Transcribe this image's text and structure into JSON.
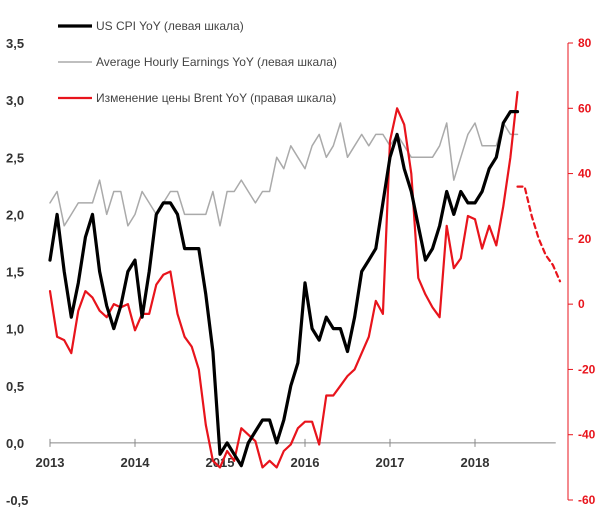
{
  "chart_data": {
    "type": "line",
    "legend_position": "top-left",
    "grid": false,
    "x_tick_labels": [
      "2013",
      "2014",
      "2015",
      "2016",
      "2017",
      "2018"
    ],
    "x_range": [
      2013.0,
      2019.0
    ],
    "y_left": {
      "range": [
        -0.5,
        3.5
      ],
      "tick_labels": [
        "-0,5",
        "0,0",
        "0,5",
        "1,0",
        "1,5",
        "2,0",
        "2,5",
        "3,0",
        "3,5"
      ],
      "tick_values": [
        -0.5,
        0,
        0.5,
        1,
        1.5,
        2,
        2.5,
        3,
        3.5
      ]
    },
    "y_right": {
      "range": [
        -60,
        80
      ],
      "tick_labels": [
        "-60",
        "-40",
        "-20",
        "0",
        "20",
        "40",
        "60",
        "80"
      ],
      "tick_values": [
        -60,
        -40,
        -20,
        0,
        20,
        40,
        60,
        80
      ]
    },
    "colors": {
      "cpi": "#000000",
      "ahe": "#aaaaaa",
      "brent": "#e8141c",
      "right_axis": "#e8141c"
    },
    "series": [
      {
        "name": "US CPI YoY (левая шкала)",
        "axis": "left",
        "x": [
          2013.0,
          2013.083,
          2013.167,
          2013.25,
          2013.333,
          2013.417,
          2013.5,
          2013.583,
          2013.667,
          2013.75,
          2013.833,
          2013.917,
          2014.0,
          2014.083,
          2014.167,
          2014.25,
          2014.333,
          2014.417,
          2014.5,
          2014.583,
          2014.667,
          2014.75,
          2014.833,
          2014.917,
          2015.0,
          2015.083,
          2015.167,
          2015.25,
          2015.333,
          2015.417,
          2015.5,
          2015.583,
          2015.667,
          2015.75,
          2015.833,
          2015.917,
          2016.0,
          2016.083,
          2016.167,
          2016.25,
          2016.333,
          2016.417,
          2016.5,
          2016.583,
          2016.667,
          2016.75,
          2016.833,
          2016.917,
          2017.0,
          2017.083,
          2017.167,
          2017.25,
          2017.333,
          2017.417,
          2017.5,
          2017.583,
          2017.667,
          2017.75,
          2017.833,
          2017.917,
          2018.0,
          2018.083,
          2018.167,
          2018.25,
          2018.333,
          2018.417,
          2018.5
        ],
        "y": [
          1.6,
          2.0,
          1.5,
          1.1,
          1.4,
          1.8,
          2.0,
          1.5,
          1.2,
          1.0,
          1.2,
          1.5,
          1.6,
          1.1,
          1.5,
          2.0,
          2.1,
          2.1,
          2.0,
          1.7,
          1.7,
          1.7,
          1.3,
          0.8,
          -0.1,
          0.0,
          -0.1,
          -0.2,
          0.0,
          0.1,
          0.2,
          0.2,
          0.0,
          0.2,
          0.5,
          0.7,
          1.4,
          1.0,
          0.9,
          1.1,
          1.0,
          1.0,
          0.8,
          1.1,
          1.5,
          1.6,
          1.7,
          2.1,
          2.5,
          2.7,
          2.4,
          2.2,
          1.9,
          1.6,
          1.7,
          1.9,
          2.2,
          2.0,
          2.2,
          2.1,
          2.1,
          2.2,
          2.4,
          2.5,
          2.8,
          2.9,
          2.9
        ]
      },
      {
        "name": "Average Hourly Earnings YoY (левая шкала)",
        "axis": "left",
        "x": [
          2013.0,
          2013.083,
          2013.167,
          2013.25,
          2013.333,
          2013.417,
          2013.5,
          2013.583,
          2013.667,
          2013.75,
          2013.833,
          2013.917,
          2014.0,
          2014.083,
          2014.167,
          2014.25,
          2014.333,
          2014.417,
          2014.5,
          2014.583,
          2014.667,
          2014.75,
          2014.833,
          2014.917,
          2015.0,
          2015.083,
          2015.167,
          2015.25,
          2015.333,
          2015.417,
          2015.5,
          2015.583,
          2015.667,
          2015.75,
          2015.833,
          2015.917,
          2016.0,
          2016.083,
          2016.167,
          2016.25,
          2016.333,
          2016.417,
          2016.5,
          2016.583,
          2016.667,
          2016.75,
          2016.833,
          2016.917,
          2017.0,
          2017.083,
          2017.167,
          2017.25,
          2017.333,
          2017.417,
          2017.5,
          2017.583,
          2017.667,
          2017.75,
          2017.833,
          2017.917,
          2018.0,
          2018.083,
          2018.167,
          2018.25,
          2018.333,
          2018.417,
          2018.5
        ],
        "y": [
          2.1,
          2.2,
          1.9,
          2.0,
          2.1,
          2.1,
          2.1,
          2.3,
          2.0,
          2.2,
          2.2,
          1.9,
          2.0,
          2.2,
          2.1,
          2.0,
          2.1,
          2.2,
          2.2,
          2.0,
          2.0,
          2.0,
          2.0,
          2.2,
          1.9,
          2.2,
          2.2,
          2.3,
          2.2,
          2.1,
          2.2,
          2.2,
          2.5,
          2.4,
          2.6,
          2.5,
          2.4,
          2.6,
          2.7,
          2.5,
          2.6,
          2.8,
          2.5,
          2.6,
          2.7,
          2.6,
          2.7,
          2.7,
          2.6,
          2.7,
          2.6,
          2.5,
          2.5,
          2.5,
          2.5,
          2.6,
          2.8,
          2.3,
          2.5,
          2.7,
          2.8,
          2.6,
          2.6,
          2.6,
          2.8,
          2.7,
          2.7
        ]
      },
      {
        "name": "Изменение цены Brent YoY (правая шкала)",
        "axis": "right",
        "x": [
          2013.0,
          2013.083,
          2013.167,
          2013.25,
          2013.333,
          2013.417,
          2013.5,
          2013.583,
          2013.667,
          2013.75,
          2013.833,
          2013.917,
          2014.0,
          2014.083,
          2014.167,
          2014.25,
          2014.333,
          2014.417,
          2014.5,
          2014.583,
          2014.667,
          2014.75,
          2014.833,
          2014.917,
          2015.0,
          2015.083,
          2015.167,
          2015.25,
          2015.333,
          2015.417,
          2015.5,
          2015.583,
          2015.667,
          2015.75,
          2015.833,
          2015.917,
          2016.0,
          2016.083,
          2016.167,
          2016.25,
          2016.333,
          2016.417,
          2016.5,
          2016.583,
          2016.667,
          2016.75,
          2016.833,
          2016.917,
          2017.0,
          2017.083,
          2017.167,
          2017.25,
          2017.333,
          2017.417,
          2017.5,
          2017.583,
          2017.667,
          2017.75,
          2017.833,
          2017.917,
          2018.0,
          2018.083,
          2018.167,
          2018.25,
          2018.333,
          2018.417,
          2018.5
        ],
        "y": [
          4,
          -10,
          -11,
          -15,
          -2,
          4,
          2,
          -2,
          -4,
          0,
          -1,
          0,
          -8,
          -3,
          -3,
          6,
          9,
          10,
          -3,
          -10,
          -13,
          -20,
          -37,
          -48,
          -50,
          -45,
          -48,
          -38,
          -40,
          -42,
          -50,
          -48,
          -50,
          -45,
          -43,
          -38,
          -36,
          -36,
          -43,
          -28,
          -28,
          -25,
          -22,
          -20,
          -15,
          -10,
          1,
          -3,
          50,
          60,
          55,
          40,
          8,
          3,
          -1,
          -4,
          24,
          11,
          14,
          27,
          26,
          17,
          24,
          18,
          30,
          45,
          65
        ]
      },
      {
        "name": "",
        "axis": "right",
        "style": "dashed",
        "x": [
          2018.5,
          2018.583,
          2018.667,
          2018.75,
          2018.833,
          2018.917,
          2019.0
        ],
        "y": [
          36,
          36,
          27,
          20,
          15,
          12,
          7
        ]
      }
    ]
  }
}
